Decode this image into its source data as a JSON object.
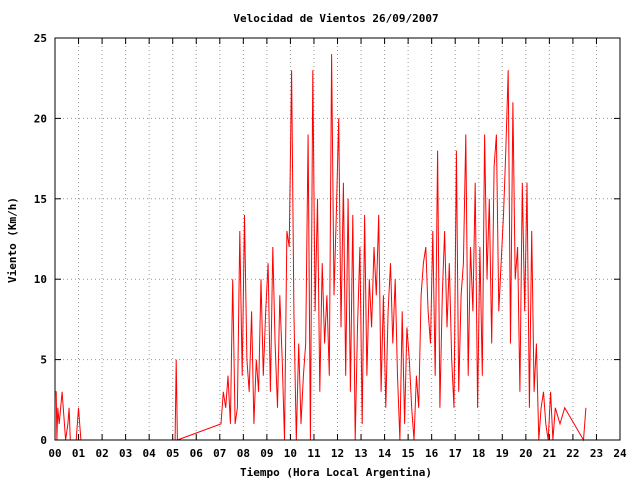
{
  "chart_data": {
    "type": "line",
    "title": "Velocidad de Vientos 26/09/2007",
    "xlabel": "Tiempo (Hora Local Argentina)",
    "ylabel": "Viento (Km/h)",
    "xlim": [
      0,
      24
    ],
    "ylim": [
      0,
      25
    ],
    "grid": true,
    "x_tick_labels": [
      "00",
      "01",
      "02",
      "03",
      "04",
      "05",
      "06",
      "07",
      "08",
      "09",
      "10",
      "11",
      "12",
      "13",
      "14",
      "15",
      "16",
      "17",
      "18",
      "19",
      "20",
      "21",
      "22",
      "23",
      "24"
    ],
    "y_ticks": [
      0,
      5,
      10,
      15,
      20,
      25
    ],
    "line_color": "#ff0000",
    "series": [
      {
        "x": [
          0.0,
          0.05,
          0.08,
          0.12,
          0.18,
          0.3,
          0.45,
          0.55,
          0.6,
          0.65,
          0.9,
          1.0,
          1.1,
          5.1,
          5.15,
          5.2,
          7.05,
          7.15,
          7.25,
          7.35,
          7.45,
          7.55,
          7.65,
          7.75,
          7.85,
          7.95,
          8.05,
          8.15,
          8.25,
          8.35,
          8.45,
          8.55,
          8.65,
          8.75,
          8.85,
          8.95,
          9.05,
          9.15,
          9.25,
          9.35,
          9.45,
          9.55,
          9.65,
          9.75,
          9.85,
          9.95,
          10.05,
          10.15,
          10.25,
          10.35,
          10.45,
          10.55,
          10.65,
          10.75,
          10.85,
          10.95,
          11.05,
          11.15,
          11.25,
          11.35,
          11.45,
          11.55,
          11.65,
          11.75,
          11.85,
          11.95,
          12.05,
          12.15,
          12.25,
          12.35,
          12.45,
          12.55,
          12.65,
          12.75,
          12.85,
          12.95,
          13.05,
          13.15,
          13.25,
          13.35,
          13.45,
          13.55,
          13.65,
          13.75,
          13.85,
          13.95,
          14.05,
          14.15,
          14.25,
          14.35,
          14.45,
          14.55,
          14.65,
          14.75,
          14.85,
          14.95,
          15.05,
          15.15,
          15.25,
          15.35,
          15.45,
          15.55,
          15.65,
          15.75,
          15.85,
          15.95,
          16.05,
          16.15,
          16.25,
          16.35,
          16.45,
          16.55,
          16.65,
          16.75,
          16.85,
          16.95,
          17.05,
          17.15,
          17.25,
          17.35,
          17.45,
          17.55,
          17.65,
          17.75,
          17.85,
          17.95,
          18.05,
          18.15,
          18.25,
          18.35,
          18.45,
          18.55,
          18.65,
          18.75,
          18.85,
          18.95,
          19.05,
          19.15,
          19.25,
          19.35,
          19.45,
          19.55,
          19.65,
          19.75,
          19.85,
          19.95,
          20.05,
          20.15,
          20.25,
          20.35,
          20.45,
          20.55,
          20.65,
          20.75,
          20.85,
          20.95,
          21.05,
          21.15,
          21.25,
          21.45,
          21.65,
          22.45,
          22.55
        ],
        "values": [
          3,
          3,
          0,
          2,
          1,
          3,
          0,
          1,
          2,
          0,
          0,
          2,
          0,
          0,
          5,
          0,
          1,
          3,
          2,
          4,
          1,
          10,
          1,
          2,
          13,
          4,
          14,
          5,
          3,
          8,
          1,
          5,
          3,
          10,
          4,
          8,
          11,
          3,
          12,
          6,
          2,
          9,
          5,
          0,
          13,
          12,
          23,
          8,
          0,
          6,
          1,
          4,
          6,
          19,
          0,
          23,
          8,
          15,
          3,
          11,
          6,
          9,
          4,
          24,
          9,
          14,
          20,
          7,
          16,
          4,
          15,
          3,
          14,
          0,
          7,
          12,
          1,
          14,
          4,
          10,
          7,
          12,
          9,
          14,
          3,
          9,
          2,
          8,
          11,
          6,
          10,
          4,
          0,
          8,
          1,
          7,
          5,
          2,
          0,
          4,
          2,
          9,
          11,
          12,
          8,
          6,
          13,
          4,
          18,
          2,
          9,
          13,
          7,
          11,
          5,
          2,
          18,
          3,
          9,
          11,
          19,
          4,
          12,
          8,
          16,
          2,
          12,
          4,
          19,
          10,
          15,
          6,
          17,
          19,
          8,
          11,
          14,
          18,
          23,
          6,
          21,
          10,
          12,
          3,
          16,
          8,
          16,
          2,
          13,
          3,
          6,
          0,
          2,
          3,
          1,
          0,
          3,
          0,
          2,
          1,
          2,
          0,
          2
        ]
      }
    ]
  }
}
